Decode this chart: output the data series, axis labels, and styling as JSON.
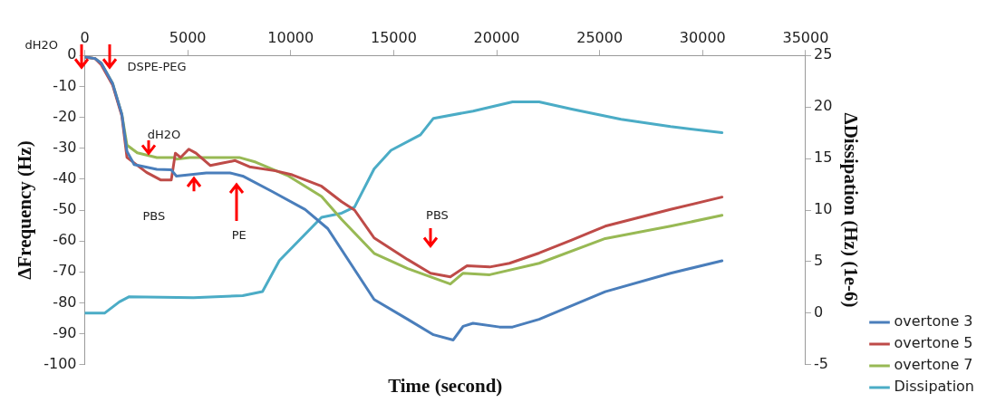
{
  "chart_data": {
    "type": "line",
    "xlabel": "Time (second)",
    "ylabel": "ΔFrequency (Hz)",
    "y2label": "ΔDissipation (Hz) (1e-6)",
    "xlim": [
      0,
      35000
    ],
    "xticks": [
      0,
      5000,
      10000,
      15000,
      20000,
      25000,
      30000,
      35000
    ],
    "ylim": [
      -100,
      0
    ],
    "yticks": [
      -100,
      -90,
      -80,
      -70,
      -60,
      -50,
      -40,
      -30,
      -20,
      -10,
      0
    ],
    "y2lim": [
      -5,
      25
    ],
    "y2ticks": [
      -5,
      0,
      5,
      10,
      15,
      20,
      25
    ],
    "grid": false,
    "legend": "bottom right",
    "marker": "none",
    "line_style": "solid",
    "series": [
      {
        "name": "overtone 3",
        "color": "#4a7ebb",
        "x": [
          0,
          500,
          800,
          1350,
          1800,
          2050,
          2400,
          3500,
          4200,
          4450,
          5900,
          7050,
          7670,
          9100,
          10700,
          11800,
          14050,
          15680,
          16930,
          17890,
          18370,
          18850,
          20140,
          20770,
          22060,
          25270,
          28440,
          30940
        ],
        "values": [
          -0.5,
          -1,
          -2.5,
          -9,
          -19,
          -31,
          -35.3,
          -36.8,
          -37,
          -39,
          -38,
          -38,
          -39,
          -44,
          -49.8,
          -56,
          -78.9,
          -85.3,
          -90.3,
          -92,
          -87.6,
          -86.6,
          -87.8,
          -87.8,
          -85.3,
          -76.4,
          -70.4,
          -66.4
        ]
      },
      {
        "name": "overtone 5",
        "color": "#be4b48",
        "x": [
          0,
          500,
          800,
          1350,
          1800,
          2050,
          3000,
          3700,
          4200,
          4400,
          4650,
          5050,
          5400,
          6100,
          6700,
          7300,
          8000,
          9250,
          10070,
          11500,
          12470,
          13100,
          14050,
          15680,
          16790,
          17750,
          18560,
          19660,
          20620,
          22060,
          23640,
          25270,
          28440,
          30940
        ],
        "values": [
          -0.5,
          -1,
          -3,
          -9.5,
          -19.5,
          -33,
          -37.8,
          -40.3,
          -40.3,
          -31.6,
          -33,
          -30.3,
          -31.6,
          -35.6,
          -34.8,
          -34,
          -36,
          -37.3,
          -38.6,
          -42.3,
          -47.3,
          -50,
          -59,
          -66,
          -70.4,
          -71.6,
          -68,
          -68.4,
          -67.2,
          -63.9,
          -59.7,
          -55.2,
          -49.8,
          -45.8
        ]
      },
      {
        "name": "overtone 7",
        "color": "#98b954",
        "x": [
          0,
          500,
          800,
          1350,
          1800,
          2050,
          2550,
          3500,
          4300,
          4450,
          5100,
          7500,
          8300,
          9900,
          11500,
          12470,
          14050,
          15680,
          17750,
          18370,
          19660,
          22060,
          25270,
          28440,
          30940
        ],
        "values": [
          -0.5,
          -1,
          -2.5,
          -9,
          -19,
          -29,
          -31.5,
          -33,
          -33,
          -33.5,
          -33,
          -33,
          -34.5,
          -39,
          -45.6,
          -53,
          -64,
          -68.9,
          -73.9,
          -70.4,
          -70.9,
          -67.2,
          -59.2,
          -55.2,
          -51.7
        ]
      },
      {
        "name": "Dissipation",
        "color": "#4bacc6",
        "axis": "y2",
        "x": [
          0,
          960,
          1680,
          2160,
          5280,
          7670,
          8630,
          9450,
          11500,
          12470,
          13100,
          14050,
          14870,
          16300,
          16930,
          18850,
          20770,
          22060,
          23640,
          26040,
          28440,
          30940
        ],
        "values": [
          0,
          0,
          1.1,
          1.6,
          1.5,
          1.7,
          2.1,
          5.1,
          9.3,
          9.7,
          10.3,
          14,
          15.8,
          17.3,
          18.9,
          19.6,
          20.5,
          20.5,
          19.8,
          18.8,
          18.1,
          17.5
        ]
      }
    ],
    "annotations": [
      "dH2O",
      "DSPE-PEG",
      "dH2O",
      "PBS",
      "PE",
      "PBS"
    ]
  }
}
